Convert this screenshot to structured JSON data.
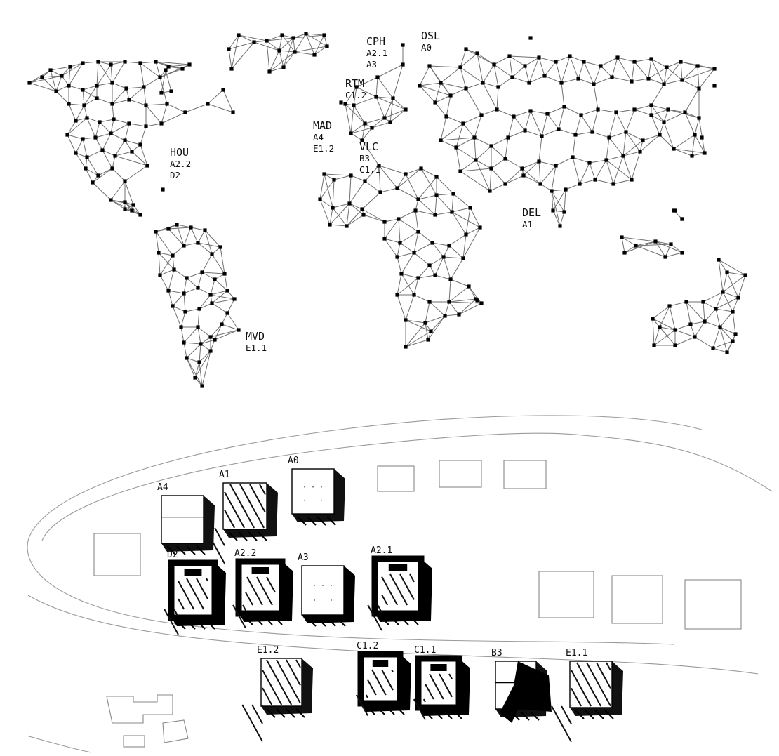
{
  "map": {
    "cities": [
      {
        "code": "CPH",
        "projects": [
          "A2.1",
          "A3"
        ]
      },
      {
        "code": "OSL",
        "projects": [
          "A0"
        ]
      },
      {
        "code": "RTM",
        "projects": [
          "C1.2"
        ]
      },
      {
        "code": "MAD",
        "projects": [
          "A4",
          "E1.2"
        ]
      },
      {
        "code": "VLC",
        "projects": [
          "B3",
          "C1.1"
        ]
      },
      {
        "code": "HOU",
        "projects": [
          "A2.2",
          "D2"
        ]
      },
      {
        "code": "DEL",
        "projects": [
          "A1"
        ]
      },
      {
        "code": "MVD",
        "projects": [
          "E1.1"
        ]
      }
    ]
  },
  "site_plan": {
    "buildings": [
      {
        "label": "A4",
        "style": "white-cut"
      },
      {
        "label": "A1",
        "style": "hatched"
      },
      {
        "label": "A0",
        "style": "plain"
      },
      {
        "label": "D2",
        "style": "dark-frame"
      },
      {
        "label": "A2.2",
        "style": "dark-frame"
      },
      {
        "label": "A3",
        "style": "dotted"
      },
      {
        "label": "A2.1",
        "style": "dark-frame"
      },
      {
        "label": "E1.2",
        "style": "hatched"
      },
      {
        "label": "C1.2",
        "style": "dark-frame"
      },
      {
        "label": "C1.1",
        "style": "dark-frame"
      },
      {
        "label": "B3",
        "style": "white-cut"
      },
      {
        "label": "E1.1",
        "style": "hatched"
      }
    ]
  },
  "colors": {
    "ink": "#000000",
    "line": "#777777",
    "light_line": "#999999",
    "paper": "#ffffff"
  }
}
